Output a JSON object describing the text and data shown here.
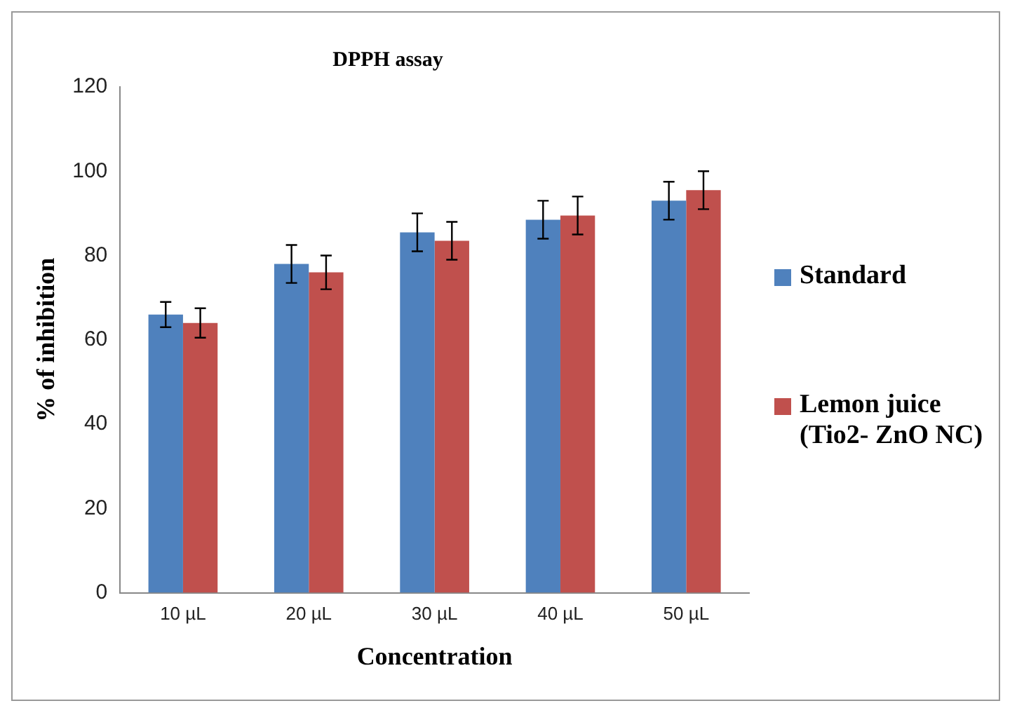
{
  "chart_data": {
    "type": "bar",
    "title": "DPPH assay",
    "xlabel": "Concentration",
    "ylabel": "% of inhibition",
    "categories": [
      "10 µL",
      "20 µL",
      "30 µL",
      "40 µL",
      "50 µL"
    ],
    "series": [
      {
        "name": "Standard",
        "color": "#4f81bd",
        "values": [
          66,
          78,
          85.5,
          88.5,
          93
        ],
        "errors": [
          3,
          4.5,
          4.5,
          4.5,
          4.5
        ]
      },
      {
        "name": "Lemon juice (Tio2- ZnO NC)",
        "color": "#c0504d",
        "values": [
          64,
          76,
          83.5,
          89.5,
          95.5
        ],
        "errors": [
          3.5,
          4,
          4.5,
          4.5,
          4.5
        ]
      }
    ],
    "ylim": [
      0,
      120
    ],
    "yticks": [
      0,
      20,
      40,
      60,
      80,
      100,
      120
    ],
    "grid": false,
    "legend": "right"
  }
}
